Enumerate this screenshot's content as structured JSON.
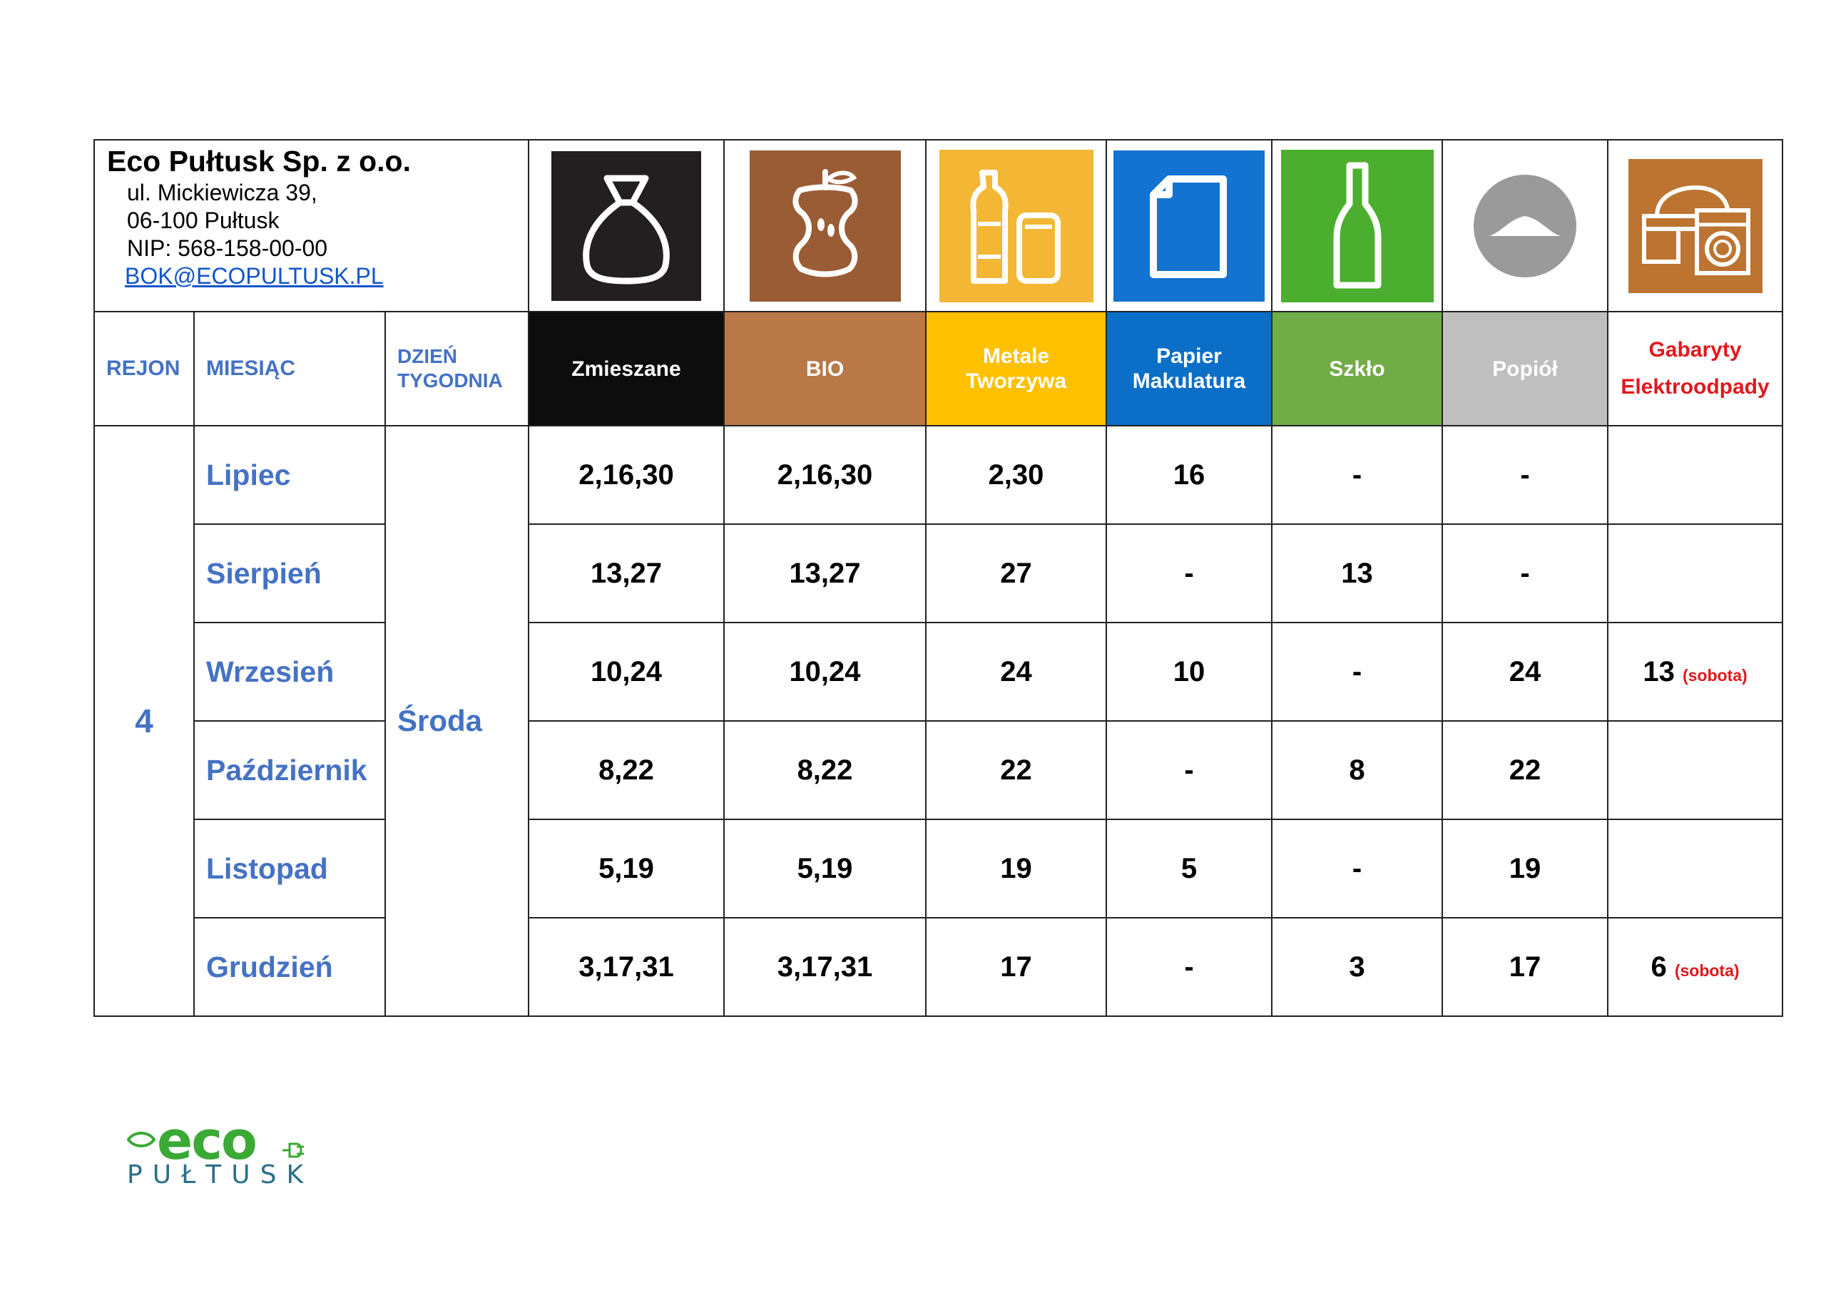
{
  "company": {
    "name": "Eco Pułtusk Sp. z o.o.",
    "street": "ul. Mickiewicza 39,",
    "city": "06-100 Pułtusk",
    "nip": "NIP: 568-158-00-00",
    "email": "BOK@ECOPULTUSK.PL"
  },
  "labels": {
    "region": "REJON",
    "month": "MIESIĄC",
    "day_line1": "DZIEŃ",
    "day_line2": "TYGODNIA"
  },
  "categories": [
    {
      "line1": "Zmieszane",
      "line2": "",
      "bg": "#0d0d0d",
      "icon": "trash-bag-icon"
    },
    {
      "line1": "BIO",
      "line2": "",
      "bg": "#b87847",
      "icon": "apple-core-icon"
    },
    {
      "line1": "Metale",
      "line2": "Tworzywa",
      "bg": "#ffc000",
      "icon": "bottle-can-icon"
    },
    {
      "line1": "Papier",
      "line2": "Makulatura",
      "bg": "#0b6fc7",
      "icon": "paper-icon"
    },
    {
      "line1": "Szkło",
      "line2": "",
      "bg": "#70ad47",
      "icon": "glass-bottle-icon"
    },
    {
      "line1": "Popiół",
      "line2": "",
      "bg": "#bfbfbf",
      "icon": "ash-icon"
    },
    {
      "line1": "Gabaryty",
      "line2": "Elektroodpady",
      "bg": "#ffffff",
      "icon": "furniture-appliance-icon"
    }
  ],
  "region": "4",
  "weekday": "Środa",
  "rows": [
    {
      "month": "Lipiec",
      "zmieszane": "2,16,30",
      "bio": "2,16,30",
      "metale": "2,30",
      "papier": "16",
      "szklo": "-",
      "popiol": "-",
      "gabaryty": "",
      "gabaryty_note": ""
    },
    {
      "month": "Sierpień",
      "zmieszane": "13,27",
      "bio": "13,27",
      "metale": "27",
      "papier": "-",
      "szklo": "13",
      "popiol": "-",
      "gabaryty": "",
      "gabaryty_note": ""
    },
    {
      "month": "Wrzesień",
      "zmieszane": "10,24",
      "bio": "10,24",
      "metale": "24",
      "papier": "10",
      "szklo": "-",
      "popiol": "24",
      "gabaryty": "13",
      "gabaryty_note": "(sobota)"
    },
    {
      "month": "Październik",
      "zmieszane": "8,22",
      "bio": "8,22",
      "metale": "22",
      "papier": "-",
      "szklo": "8",
      "popiol": "22",
      "gabaryty": "",
      "gabaryty_note": ""
    },
    {
      "month": "Listopad",
      "zmieszane": "5,19",
      "bio": "5,19",
      "metale": "19",
      "papier": "5",
      "szklo": "-",
      "popiol": "19",
      "gabaryty": "",
      "gabaryty_note": ""
    },
    {
      "month": "Grudzień",
      "zmieszane": "3,17,31",
      "bio": "3,17,31",
      "metale": "17",
      "papier": "-",
      "szklo": "3",
      "popiol": "17",
      "gabaryty": "6",
      "gabaryty_note": "(sobota)"
    }
  ],
  "logo": {
    "main": "eco",
    "sub": "PUŁTUSK",
    "color_main": "#3aa935",
    "color_sub": "#2b6f8a"
  }
}
